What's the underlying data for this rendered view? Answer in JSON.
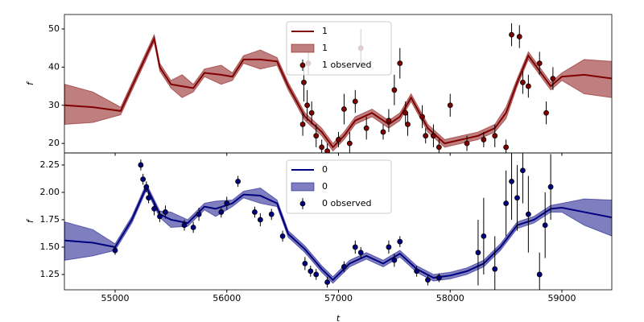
{
  "chart_data": [
    {
      "type": "gp",
      "ylabel": "f",
      "xlim": [
        54546,
        59447
      ],
      "ylim": [
        17.5,
        53.8
      ],
      "xticks": [
        55000,
        56000,
        57000,
        58000,
        59000
      ],
      "yticks": [
        20,
        30,
        40,
        50
      ],
      "legend": "upper center",
      "x": [
        54550,
        54800,
        55050,
        55200,
        55350,
        55400,
        55500,
        55600,
        55700,
        55800,
        55950,
        56050,
        56150,
        56300,
        56450,
        56550,
        56700,
        56850,
        56950,
        57050,
        57150,
        57300,
        57450,
        57550,
        57650,
        57800,
        57950,
        58100,
        58250,
        58400,
        58500,
        58600,
        58700,
        58800,
        58900,
        59000,
        59200,
        59450
      ],
      "series": [
        {
          "name": "1",
          "kind": "line",
          "color": "#800000",
          "values": [
            30,
            29.5,
            28.5,
            38,
            47.5,
            40,
            35.5,
            35,
            34.5,
            38.5,
            38,
            37.5,
            42,
            42,
            41.5,
            35,
            27,
            23,
            19,
            22,
            26,
            28,
            25,
            27,
            32,
            24,
            20,
            21,
            22,
            24,
            28,
            36,
            43,
            39,
            35,
            37.5,
            38,
            37
          ]
        },
        {
          "name": "1",
          "kind": "band",
          "color": "#800000",
          "lower": [
            25,
            25.5,
            27.5,
            37,
            46.5,
            39,
            34.5,
            32,
            33.5,
            37.5,
            35.5,
            36.5,
            41,
            39.5,
            40.5,
            34,
            26,
            22,
            18,
            21,
            25,
            27,
            24,
            26,
            31,
            23,
            19,
            20,
            21,
            23,
            26.5,
            35,
            42,
            38,
            34,
            36.5,
            33,
            32
          ],
          "upper": [
            35.5,
            33.5,
            29.5,
            39,
            48.5,
            41,
            36.5,
            38,
            35.5,
            39.5,
            40.5,
            38.5,
            43,
            44.5,
            42.5,
            36,
            28,
            24,
            20,
            23,
            27,
            29,
            26,
            28,
            33,
            25,
            21,
            22,
            23,
            25,
            29.5,
            37,
            44,
            40,
            36,
            38.5,
            42,
            41.5
          ]
        },
        {
          "name": "1 observed",
          "kind": "points",
          "color": "#800000",
          "x": [
            56680,
            56720,
            56760,
            56800,
            56850,
            56900,
            57000,
            57050,
            57100,
            57150,
            57200,
            57250,
            57400,
            57450,
            57500,
            57550,
            57600,
            57750,
            57850,
            57900,
            58000,
            58150,
            58300,
            58400,
            58500,
            58550,
            58620,
            58650,
            58700,
            58800,
            58860,
            58920,
            56690,
            56730,
            57780,
            57620
          ],
          "values": [
            25,
            30,
            28,
            22,
            19,
            18,
            21,
            29,
            20,
            31,
            45,
            24,
            23,
            26,
            34,
            41,
            28,
            27,
            22,
            19,
            30,
            20,
            21,
            22,
            19,
            48.5,
            48,
            36,
            35,
            41,
            28,
            37,
            36,
            41,
            22,
            25
          ],
          "errors": [
            3,
            4,
            3,
            3,
            2,
            2,
            2,
            4,
            3,
            3,
            5,
            3,
            2,
            3,
            4,
            4,
            3,
            3,
            3,
            2,
            3,
            2,
            2,
            3,
            2,
            3,
            3,
            3,
            3,
            3,
            3,
            3,
            5,
            3,
            2,
            3
          ]
        }
      ]
    },
    {
      "type": "gp",
      "xlabel": "t",
      "ylabel": "f",
      "xlim": [
        54546,
        59447
      ],
      "ylim": [
        1.11,
        2.36
      ],
      "xticks": [
        55000,
        56000,
        57000,
        58000,
        59000
      ],
      "yticks": [
        1.25,
        {
          "value": 1.5,
          "label": "1.50"
        },
        1.75,
        {
          "value": 2,
          "label": "2.00"
        },
        2.25
      ],
      "legend": "upper center",
      "x": [
        54550,
        54800,
        55000,
        55150,
        55280,
        55400,
        55500,
        55650,
        55800,
        55900,
        56050,
        56150,
        56300,
        56450,
        56550,
        56700,
        56850,
        56950,
        57100,
        57250,
        57400,
        57550,
        57700,
        57850,
        58000,
        58150,
        58300,
        58450,
        58600,
        58750,
        58900,
        59000,
        59200,
        59450
      ],
      "series": [
        {
          "name": "0",
          "kind": "line",
          "color": "#000080",
          "values": [
            1.56,
            1.54,
            1.5,
            1.75,
            2.05,
            1.8,
            1.75,
            1.72,
            1.87,
            1.85,
            1.9,
            1.98,
            1.97,
            1.9,
            1.62,
            1.48,
            1.3,
            1.2,
            1.35,
            1.42,
            1.35,
            1.44,
            1.3,
            1.22,
            1.24,
            1.28,
            1.35,
            1.5,
            1.7,
            1.75,
            1.85,
            1.86,
            1.82,
            1.77
          ]
        },
        {
          "name": "0",
          "kind": "band",
          "color": "#000080",
          "lower": [
            1.38,
            1.42,
            1.47,
            1.72,
            2.02,
            1.77,
            1.68,
            1.69,
            1.84,
            1.78,
            1.87,
            1.95,
            1.9,
            1.87,
            1.59,
            1.45,
            1.27,
            1.17,
            1.32,
            1.39,
            1.32,
            1.41,
            1.27,
            1.19,
            1.21,
            1.25,
            1.32,
            1.47,
            1.67,
            1.72,
            1.82,
            1.82,
            1.7,
            1.6
          ],
          "upper": [
            1.73,
            1.66,
            1.53,
            1.78,
            2.08,
            1.83,
            1.82,
            1.75,
            1.9,
            1.92,
            1.93,
            2.01,
            2.04,
            1.93,
            1.65,
            1.51,
            1.33,
            1.23,
            1.38,
            1.45,
            1.38,
            1.47,
            1.33,
            1.25,
            1.27,
            1.31,
            1.38,
            1.53,
            1.73,
            1.78,
            1.88,
            1.9,
            1.94,
            1.93
          ]
        },
        {
          "name": "0 observed",
          "kind": "points",
          "color": "#000080",
          "x": [
            55000,
            55230,
            55250,
            55280,
            55300,
            55350,
            55400,
            55450,
            55620,
            55700,
            55750,
            55950,
            56000,
            56100,
            56250,
            56300,
            56400,
            56500,
            56700,
            56750,
            56800,
            56900,
            57050,
            57150,
            57200,
            57450,
            57500,
            57550,
            57700,
            57800,
            57900,
            58250,
            58300,
            58400,
            58500,
            58550,
            58600,
            58650,
            58700,
            58800,
            58850,
            58900
          ],
          "values": [
            1.47,
            2.25,
            2.12,
            2.05,
            1.95,
            1.85,
            1.78,
            1.82,
            1.7,
            1.68,
            1.8,
            1.82,
            1.9,
            2.1,
            1.82,
            1.75,
            1.8,
            1.6,
            1.35,
            1.28,
            1.25,
            1.18,
            1.32,
            1.5,
            1.45,
            1.5,
            1.38,
            1.55,
            1.28,
            1.2,
            1.22,
            1.45,
            1.6,
            1.3,
            1.9,
            2.1,
            1.95,
            2.2,
            1.8,
            1.25,
            1.7,
            2.05
          ],
          "errors": [
            0.04,
            0.05,
            0.05,
            0.05,
            0.05,
            0.06,
            0.05,
            0.06,
            0.05,
            0.05,
            0.06,
            0.05,
            0.06,
            0.05,
            0.05,
            0.06,
            0.05,
            0.05,
            0.06,
            0.05,
            0.05,
            0.05,
            0.05,
            0.06,
            0.05,
            0.06,
            0.06,
            0.05,
            0.05,
            0.05,
            0.04,
            0.3,
            0.35,
            0.3,
            0.3,
            0.35,
            0.3,
            0.3,
            0.35,
            0.2,
            0.3,
            0.3
          ]
        }
      ]
    }
  ]
}
